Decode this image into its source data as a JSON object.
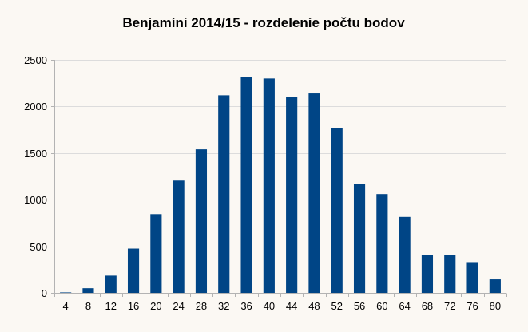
{
  "chart_data": {
    "type": "bar",
    "title": "Benjamíni 2014/15 - rozdelenie počtu bodov",
    "xlabel": "",
    "ylabel": "",
    "categories": [
      "4",
      "8",
      "12",
      "16",
      "20",
      "24",
      "28",
      "32",
      "36",
      "40",
      "44",
      "48",
      "52",
      "56",
      "60",
      "64",
      "68",
      "72",
      "76",
      "80"
    ],
    "values": [
      5,
      50,
      185,
      475,
      845,
      1205,
      1540,
      2120,
      2320,
      2300,
      2100,
      2140,
      1770,
      1170,
      1060,
      815,
      410,
      410,
      330,
      145
    ],
    "ylim": [
      0,
      2500
    ],
    "yticks": [
      "0",
      "500",
      "1000",
      "1500",
      "2000",
      "2500"
    ],
    "grid": true,
    "legend": "none",
    "colors": {
      "bar": "#004586",
      "background": "#fbf8f3",
      "grid": "#dcdcdc"
    }
  }
}
